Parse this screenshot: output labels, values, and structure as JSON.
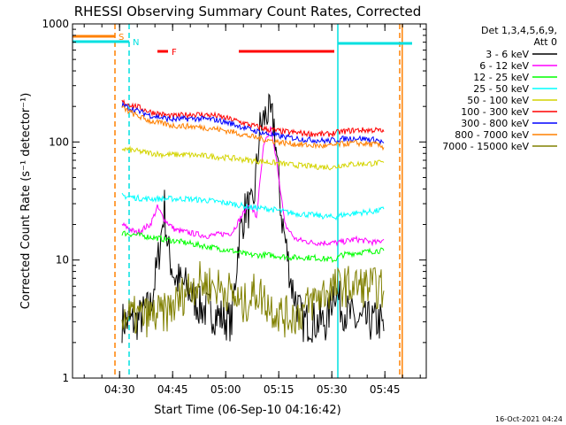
{
  "chart_data": {
    "type": "line",
    "title": "RHESSI Observing Summary Count Rates, Corrected",
    "xlabel": "Start Time (06-Sep-10 04:16:42)",
    "ylabel": "Corrected Count Rate (s⁻¹ detector⁻¹)",
    "yscale": "log",
    "ylim": [
      1,
      1000
    ],
    "xlim_min": [
      0,
      100
    ],
    "x_unit": "minutes since 04:16:42",
    "y_ticks": [
      {
        "value": 1,
        "label": "1"
      },
      {
        "value": 10,
        "label": "10"
      },
      {
        "value": 100,
        "label": "100"
      },
      {
        "value": 1000,
        "label": "1000"
      }
    ],
    "x_ticks": [
      {
        "value": 13.3,
        "label": "04:30"
      },
      {
        "value": 28.3,
        "label": "04:45"
      },
      {
        "value": 43.3,
        "label": "05:00"
      },
      {
        "value": 58.3,
        "label": "05:15"
      },
      {
        "value": 73.3,
        "label": "05:30"
      },
      {
        "value": 88.3,
        "label": "05:45"
      }
    ],
    "legend": {
      "header": [
        "Det 1,3,4,5,6,9,",
        "Att 0"
      ],
      "placement": "right"
    },
    "flags": [
      {
        "label": "S",
        "color": "#ff8000",
        "x_start": 0,
        "x_end": 12
      },
      {
        "label": "N",
        "color": "#00e0e0",
        "x_start": 0,
        "x_end": 16
      },
      {
        "label": "F",
        "color": "#ff0000",
        "x_start": 24,
        "x_end": 27
      },
      {
        "label": "",
        "color": "#ff0000",
        "x_start": 47,
        "x_end": 74
      },
      {
        "label": "",
        "color": "#00e0e0",
        "x_start": 75,
        "x_end": 96
      }
    ],
    "vlines": [
      {
        "x": 12,
        "color": "#ff8000",
        "style": "dashed"
      },
      {
        "x": 16,
        "color": "#00e0e0",
        "style": "dashed"
      },
      {
        "x": 75,
        "color": "#00e0e0",
        "style": "solid"
      },
      {
        "x": 92.5,
        "color": "#ff8000",
        "style": "dashed"
      },
      {
        "x": 93.2,
        "color": "#ff8000",
        "style": "solid"
      }
    ],
    "series": [
      {
        "name": "3 - 6 keV",
        "color": "#000000",
        "points": [
          [
            14,
            3
          ],
          [
            18,
            3
          ],
          [
            22,
            4
          ],
          [
            24,
            9
          ],
          [
            26,
            28
          ],
          [
            27,
            12
          ],
          [
            29,
            7
          ],
          [
            32,
            6
          ],
          [
            36,
            4
          ],
          [
            45,
            3
          ],
          [
            47,
            15
          ],
          [
            49,
            28
          ],
          [
            51,
            26
          ],
          [
            53,
            130
          ],
          [
            55,
            180
          ],
          [
            57,
            140
          ],
          [
            59,
            25
          ],
          [
            62,
            6
          ],
          [
            65,
            3
          ],
          [
            72,
            3
          ],
          [
            74,
            6
          ],
          [
            76,
            4
          ],
          [
            80,
            3
          ],
          [
            87,
            3
          ],
          [
            88,
            2.5
          ]
        ]
      },
      {
        "name": "6 - 12 keV",
        "color": "#ff00ff",
        "points": [
          [
            14,
            20
          ],
          [
            18,
            17
          ],
          [
            22,
            20
          ],
          [
            24,
            28
          ],
          [
            26,
            22
          ],
          [
            29,
            18
          ],
          [
            33,
            17
          ],
          [
            38,
            16
          ],
          [
            45,
            17
          ],
          [
            48,
            24
          ],
          [
            50,
            30
          ],
          [
            52,
            23
          ],
          [
            54,
            90
          ],
          [
            56,
            130
          ],
          [
            58,
            60
          ],
          [
            60,
            20
          ],
          [
            63,
            15
          ],
          [
            68,
            14
          ],
          [
            75,
            14
          ],
          [
            80,
            15
          ],
          [
            86,
            14
          ],
          [
            88,
            15
          ]
        ]
      },
      {
        "name": "12 - 25 keV",
        "color": "#00ff00",
        "points": [
          [
            14,
            17
          ],
          [
            20,
            16
          ],
          [
            26,
            15
          ],
          [
            32,
            14
          ],
          [
            38,
            13
          ],
          [
            45,
            12
          ],
          [
            50,
            11
          ],
          [
            56,
            11
          ],
          [
            62,
            10.5
          ],
          [
            68,
            10.5
          ],
          [
            74,
            10
          ],
          [
            76,
            11
          ],
          [
            80,
            11.5
          ],
          [
            86,
            12
          ],
          [
            88,
            12
          ]
        ]
      },
      {
        "name": "25 - 50 keV",
        "color": "#00ffff",
        "points": [
          [
            14,
            35
          ],
          [
            20,
            33
          ],
          [
            26,
            33
          ],
          [
            32,
            33
          ],
          [
            38,
            32
          ],
          [
            45,
            30
          ],
          [
            50,
            28
          ],
          [
            56,
            27
          ],
          [
            62,
            25
          ],
          [
            68,
            24
          ],
          [
            74,
            23
          ],
          [
            76,
            24
          ],
          [
            80,
            25
          ],
          [
            86,
            26
          ],
          [
            88,
            27
          ]
        ]
      },
      {
        "name": "50 - 100 keV",
        "color": "#d4d400",
        "points": [
          [
            14,
            88
          ],
          [
            20,
            82
          ],
          [
            26,
            78
          ],
          [
            32,
            78
          ],
          [
            38,
            76
          ],
          [
            45,
            73
          ],
          [
            50,
            70
          ],
          [
            56,
            67
          ],
          [
            62,
            64
          ],
          [
            68,
            62
          ],
          [
            74,
            61
          ],
          [
            76,
            64
          ],
          [
            80,
            65
          ],
          [
            86,
            66
          ],
          [
            88,
            67
          ]
        ]
      },
      {
        "name": "100 - 300 keV",
        "color": "#ff0000",
        "points": [
          [
            14,
            218
          ],
          [
            18,
            200
          ],
          [
            22,
            180
          ],
          [
            28,
            165
          ],
          [
            34,
            172
          ],
          [
            40,
            168
          ],
          [
            45,
            155
          ],
          [
            50,
            140
          ],
          [
            55,
            128
          ],
          [
            60,
            122
          ],
          [
            66,
            118
          ],
          [
            72,
            116
          ],
          [
            76,
            122
          ],
          [
            80,
            126
          ],
          [
            86,
            126
          ],
          [
            88,
            122
          ]
        ]
      },
      {
        "name": "300 - 800 keV",
        "color": "#0000ff",
        "points": [
          [
            14,
            205
          ],
          [
            18,
            185
          ],
          [
            22,
            168
          ],
          [
            28,
            155
          ],
          [
            34,
            158
          ],
          [
            40,
            155
          ],
          [
            45,
            143
          ],
          [
            50,
            128
          ],
          [
            55,
            117
          ],
          [
            60,
            110
          ],
          [
            66,
            105
          ],
          [
            72,
            102
          ],
          [
            76,
            106
          ],
          [
            80,
            108
          ],
          [
            86,
            104
          ],
          [
            88,
            98
          ]
        ]
      },
      {
        "name": "800 - 7000 keV",
        "color": "#ff8000",
        "points": [
          [
            14,
            195
          ],
          [
            18,
            168
          ],
          [
            22,
            150
          ],
          [
            28,
            138
          ],
          [
            34,
            135
          ],
          [
            40,
            130
          ],
          [
            45,
            122
          ],
          [
            50,
            112
          ],
          [
            55,
            104
          ],
          [
            60,
            98
          ],
          [
            66,
            94
          ],
          [
            72,
            92
          ],
          [
            76,
            96
          ],
          [
            80,
            98
          ],
          [
            86,
            95
          ],
          [
            88,
            90
          ]
        ]
      },
      {
        "name": "7000 - 15000 keV",
        "color": "#808000",
        "points": [
          [
            14,
            3.3
          ],
          [
            20,
            3.3
          ],
          [
            26,
            3.5
          ],
          [
            30,
            4.5
          ],
          [
            33,
            6
          ],
          [
            36,
            6.5
          ],
          [
            40,
            6
          ],
          [
            44,
            5.5
          ],
          [
            48,
            4
          ],
          [
            52,
            5.5
          ],
          [
            56,
            4
          ],
          [
            60,
            3.3
          ],
          [
            64,
            3.5
          ],
          [
            68,
            4.5
          ],
          [
            72,
            5.5
          ],
          [
            76,
            6
          ],
          [
            80,
            6
          ],
          [
            84,
            6
          ],
          [
            88,
            5.5
          ]
        ]
      }
    ],
    "footer_date": "16-Oct-2021 04:24"
  },
  "colors": {
    "axis": "#000000",
    "background": "#ffffff"
  }
}
